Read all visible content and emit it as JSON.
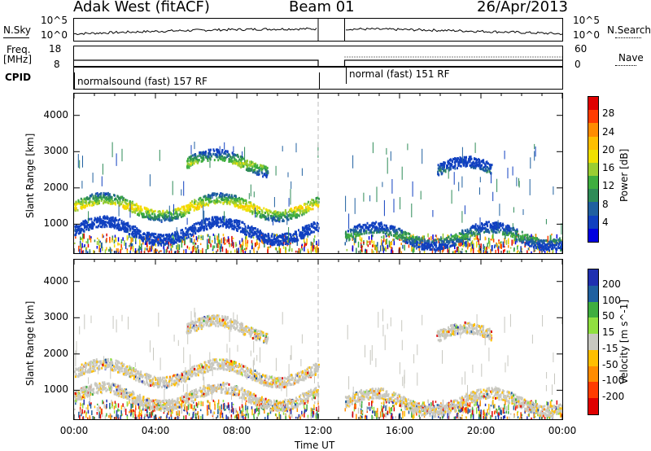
{
  "header": {
    "radar": "Adak West (fitACF)",
    "beam": "Beam 01",
    "date": "26/Apr/2013"
  },
  "top_panels": {
    "nsky_label": "N.Sky",
    "nsky_ticks": [
      "10^5",
      "10^0"
    ],
    "nsearch_label": "N.Search",
    "nsearch_ticks": [
      "10^5",
      "10^0"
    ],
    "freq_label": "Freq.",
    "freq_unit": "[MHz]",
    "freq_ticks": [
      "18",
      "8"
    ],
    "nave_label": "Nave",
    "nave_ticks": [
      "60",
      "0"
    ],
    "cpid_label": "CPID",
    "cpid_segments": [
      "normalsound (fast) 157 RF",
      "normal (fast) 151 RF"
    ]
  },
  "chart_data": [
    {
      "type": "heatmap",
      "title": "",
      "xlabel": "Time UT",
      "ylabel": "Slant Range [km]",
      "x_ticks": [
        "00:00",
        "04:00",
        "08:00",
        "12:00",
        "16:00",
        "20:00",
        "00:00"
      ],
      "xlim": [
        0,
        24
      ],
      "ylim": [
        200,
        4600
      ],
      "y_ticks": [
        1000,
        2000,
        3000,
        4000
      ],
      "data_gap_hours": [
        12.0,
        13.3
      ],
      "colorbar": {
        "label": "Power [dB]",
        "ticks": [
          "28",
          "24",
          "20",
          "16",
          "12",
          "8",
          "4"
        ],
        "range": [
          0,
          30
        ],
        "colors": [
          "#e00000",
          "#ff3c00",
          "#ff8c00",
          "#ffbf00",
          "#f0e000",
          "#9acd32",
          "#3fae3f",
          "#2e8b57",
          "#2060a0",
          "#1040c0",
          "#0000e0"
        ]
      },
      "features": [
        {
          "t_start": 0,
          "t_end": 12,
          "range_km": 1500,
          "power_db": 22
        },
        {
          "t_start": 5.5,
          "t_end": 9.5,
          "range_km": 2700,
          "power_db": 18
        },
        {
          "t_start": 0,
          "t_end": 12,
          "range_km": 850,
          "power_db": 6
        },
        {
          "t_start": 13.3,
          "t_end": 24,
          "range_km": 700,
          "power_db": 14
        },
        {
          "t_start": 17.8,
          "t_end": 20.5,
          "range_km": 2500,
          "power_db": 10
        }
      ]
    },
    {
      "type": "heatmap",
      "title": "",
      "xlabel": "Time UT",
      "ylabel": "Slant Range [km]",
      "x_ticks": [
        "00:00",
        "04:00",
        "08:00",
        "12:00",
        "16:00",
        "20:00",
        "00:00"
      ],
      "xlim": [
        0,
        24
      ],
      "ylim": [
        200,
        4600
      ],
      "y_ticks": [
        1000,
        2000,
        3000,
        4000
      ],
      "colorbar": {
        "label": "Velocity [m s^-1]",
        "ticks": [
          "200",
          "100",
          "50",
          "15",
          "-15",
          "-50",
          "-100",
          "-200"
        ],
        "range": [
          -250,
          250
        ],
        "colors": [
          "#2030b0",
          "#2060a0",
          "#3fae3f",
          "#90e040",
          "#c8c8c0",
          "#ffbf00",
          "#ff8c00",
          "#ff3c00",
          "#e00000"
        ]
      }
    }
  ]
}
